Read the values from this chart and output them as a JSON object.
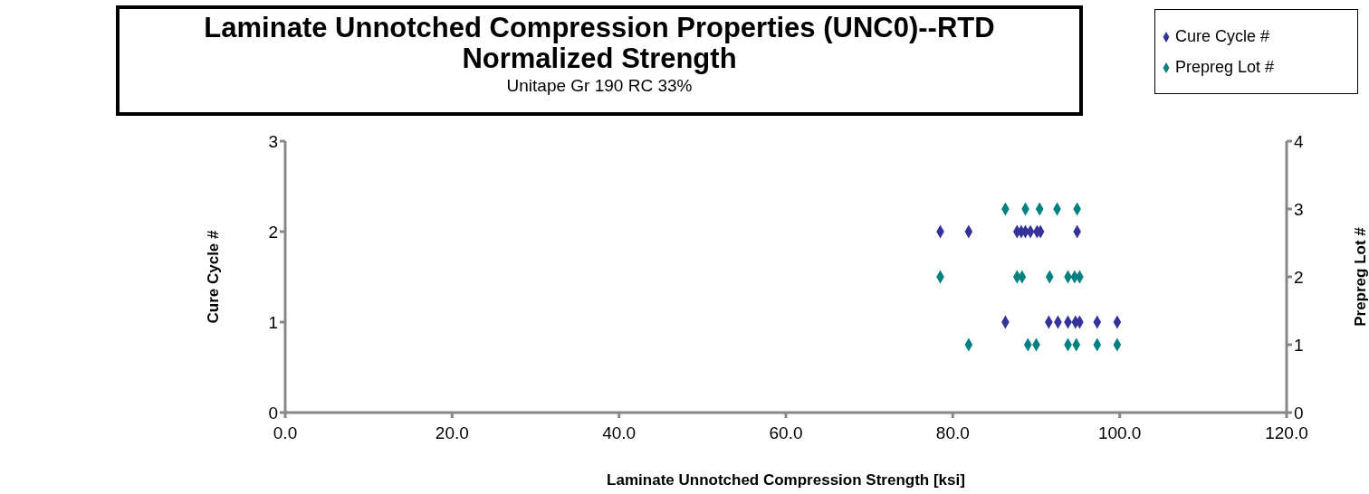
{
  "chart_data": {
    "type": "scatter",
    "title": "Laminate Unnotched Compression Properties (UNC0)--RTD\nNormalized Strength",
    "subtitle": "Unitape Gr 190 RC 33%",
    "xlabel": "Laminate Unnotched Compression Strength [ksi]",
    "ylabel": "Cure Cycle #",
    "y2label": "Prepreg Lot #",
    "xlim": [
      0,
      120
    ],
    "xticks": [
      {
        "value": 0,
        "label": "0.0"
      },
      {
        "value": 20,
        "label": "20.0"
      },
      {
        "value": 40,
        "label": "40.0"
      },
      {
        "value": 60,
        "label": "60.0"
      },
      {
        "value": 80,
        "label": "80.0"
      },
      {
        "value": 100,
        "label": "100.0"
      },
      {
        "value": 120,
        "label": "120.0"
      }
    ],
    "ylim": [
      0,
      3
    ],
    "yticks": [
      0,
      1,
      2,
      3
    ],
    "y2lim": [
      0,
      4
    ],
    "y2ticks": [
      0,
      1,
      2,
      3,
      4
    ],
    "marker": "diamond",
    "grid": false,
    "legend": "top right",
    "series": [
      {
        "name": "Cure Cycle #",
        "color": "#333399",
        "x": [
          78.5,
          81.9,
          87.7,
          88.2,
          88.7,
          89.3,
          90.1,
          90.5,
          94.9,
          86.3,
          91.5,
          92.6,
          93.8,
          94.7,
          95.2,
          97.3,
          99.7
        ],
        "values": [
          2,
          2,
          2,
          2,
          2,
          2,
          2,
          2,
          2,
          1,
          1,
          1,
          1,
          1,
          1,
          1,
          1
        ]
      },
      {
        "name": "Prepreg Lot #",
        "color": "#008080",
        "axis": "y2",
        "x": [
          86.3,
          88.7,
          90.4,
          92.5,
          94.9,
          78.5,
          87.7,
          88.3,
          91.6,
          93.8,
          94.6,
          95.2,
          81.9,
          89.0,
          90.0,
          93.8,
          94.8,
          97.3,
          99.7
        ],
        "values": [
          3,
          3,
          3,
          3,
          3,
          2,
          2,
          2,
          2,
          2,
          2,
          2,
          1,
          1,
          1,
          1,
          1,
          1,
          1
        ]
      }
    ]
  }
}
